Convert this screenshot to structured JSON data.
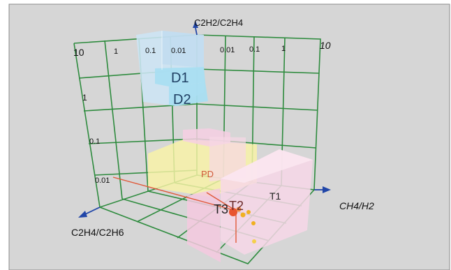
{
  "axes": {
    "vertical_label": "C2H2/C2H4",
    "right_label": "CH4/H2",
    "left_label": "C2H4/C2H6"
  },
  "grid_ticks": {
    "left_wall_top": [
      "10",
      "1"
    ],
    "left_wall_side": [
      "10",
      "1",
      "0.1",
      "0.01"
    ],
    "right_wall_top": [
      "0.01",
      "0.1",
      "1",
      "10"
    ],
    "panel_top": [
      "0.1",
      "0.01"
    ]
  },
  "zones": {
    "d1": "D1",
    "d2": "D2",
    "pd": "PD",
    "t1": "T1",
    "t2": "T2",
    "t3": "T3"
  },
  "colors": {
    "background": "#d6d6d6",
    "grid": "#2e8b3e",
    "axis_arrow": "#2146a8",
    "d_zone": "#b9e3f5",
    "pd_zone": "#f9f3a6",
    "t_zone": "#f7d3e6",
    "red_line": "#e05a3a",
    "points": "#f0b020"
  }
}
